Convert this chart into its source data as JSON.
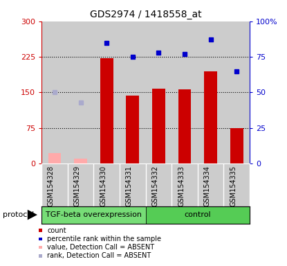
{
  "title": "GDS2974 / 1418558_at",
  "samples": [
    "GSM154328",
    "GSM154329",
    "GSM154330",
    "GSM154331",
    "GSM154332",
    "GSM154333",
    "GSM154334",
    "GSM154335"
  ],
  "bar_values": [
    null,
    null,
    222,
    143,
    158,
    157,
    195,
    75
  ],
  "bar_absent_values": [
    22,
    10,
    null,
    null,
    null,
    null,
    null,
    null
  ],
  "percentile_values": [
    null,
    null,
    85,
    75,
    78,
    77,
    87,
    65
  ],
  "percentile_absent_values": [
    50,
    43,
    null,
    null,
    null,
    null,
    null,
    null
  ],
  "bar_color": "#cc0000",
  "bar_absent_color": "#ffaaaa",
  "percentile_color": "#0000cc",
  "percentile_absent_color": "#aaaacc",
  "ylim_left": [
    0,
    300
  ],
  "yticks_left": [
    0,
    75,
    150,
    225,
    300
  ],
  "ytick_labels_left": [
    "0",
    "75",
    "150",
    "225",
    "300"
  ],
  "yticks_right": [
    0,
    25,
    50,
    75,
    100
  ],
  "ytick_labels_right": [
    "0",
    "25",
    "50",
    "75",
    "100%"
  ],
  "hlines": [
    75,
    150,
    225
  ],
  "groups": [
    {
      "label": "TGF-beta overexpression",
      "start": 0,
      "end": 4,
      "color": "#77dd77"
    },
    {
      "label": "control",
      "start": 4,
      "end": 8,
      "color": "#55cc55"
    }
  ],
  "protocol_label": "protocol",
  "background_color": "#ffffff",
  "plot_bg_color": "#cccccc",
  "legend_items": [
    {
      "label": "count",
      "color": "#cc0000"
    },
    {
      "label": "percentile rank within the sample",
      "color": "#0000cc"
    },
    {
      "label": "value, Detection Call = ABSENT",
      "color": "#ffaaaa"
    },
    {
      "label": "rank, Detection Call = ABSENT",
      "color": "#aaaacc"
    }
  ]
}
